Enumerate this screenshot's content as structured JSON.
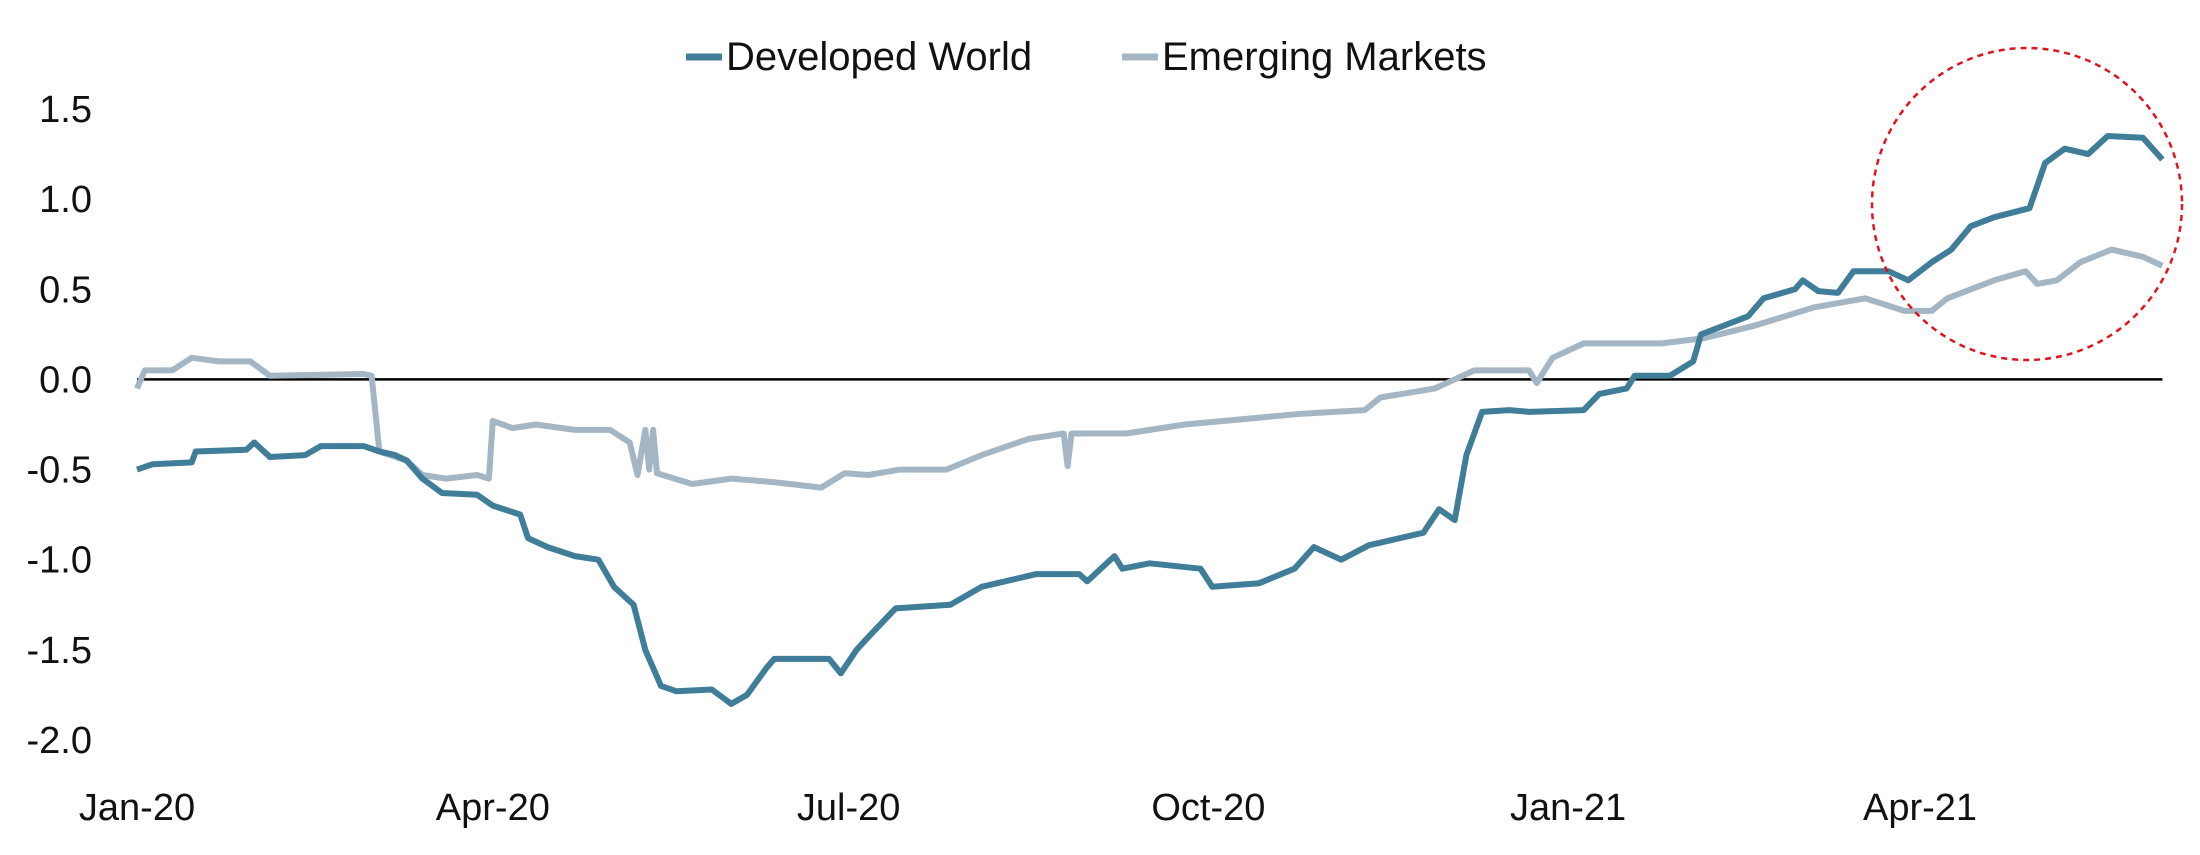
{
  "chart_data": {
    "type": "line",
    "title": "",
    "xlabel": "",
    "ylabel": "",
    "ylim": [
      -2.0,
      1.5
    ],
    "yticks": [
      "1.5",
      "1.0",
      "0.5",
      "0.0",
      "-0.5",
      "-1.0",
      "-1.5",
      "-2.0"
    ],
    "ytick_values": [
      1.5,
      1.0,
      0.5,
      0.0,
      -0.5,
      -1.0,
      -1.5,
      -2.0
    ],
    "xticks": [
      {
        "label": "Jan-20",
        "date": "2020-01-01"
      },
      {
        "label": "Apr-20",
        "date": "2020-04-01"
      },
      {
        "label": "Jul-20",
        "date": "2020-07-01"
      },
      {
        "label": "Oct-20",
        "date": "2020-10-01"
      },
      {
        "label": "Jan-21",
        "date": "2021-01-01"
      },
      {
        "label": "Apr-21",
        "date": "2021-04-01"
      }
    ],
    "grid": false,
    "zero_line": true,
    "legend_position": "top-center",
    "annotation": {
      "type": "dashed-circle",
      "color": "#e0141e",
      "around": "Apr-21 to end"
    },
    "series": [
      {
        "name": "Developed World",
        "color": "#3f7d99",
        "points": [
          [
            "2020-01-01",
            -0.5
          ],
          [
            "2020-01-05",
            -0.47
          ],
          [
            "2020-01-15",
            -0.46
          ],
          [
            "2020-01-16",
            -0.4
          ],
          [
            "2020-01-29",
            -0.39
          ],
          [
            "2020-01-31",
            -0.35
          ],
          [
            "2020-02-04",
            -0.43
          ],
          [
            "2020-02-13",
            -0.42
          ],
          [
            "2020-02-17",
            -0.37
          ],
          [
            "2020-02-28",
            -0.37
          ],
          [
            "2020-03-03",
            -0.4
          ],
          [
            "2020-03-07",
            -0.42
          ],
          [
            "2020-03-10",
            -0.45
          ],
          [
            "2020-03-14",
            -0.55
          ],
          [
            "2020-03-19",
            -0.63
          ],
          [
            "2020-03-28",
            -0.64
          ],
          [
            "2020-04-01",
            -0.7
          ],
          [
            "2020-04-08",
            -0.75
          ],
          [
            "2020-04-10",
            -0.88
          ],
          [
            "2020-04-15",
            -0.93
          ],
          [
            "2020-04-22",
            -0.98
          ],
          [
            "2020-04-28",
            -1.0
          ],
          [
            "2020-05-02",
            -1.15
          ],
          [
            "2020-05-07",
            -1.25
          ],
          [
            "2020-05-10",
            -1.5
          ],
          [
            "2020-05-14",
            -1.7
          ],
          [
            "2020-05-18",
            -1.73
          ],
          [
            "2020-05-27",
            -1.72
          ],
          [
            "2020-06-01",
            -1.8
          ],
          [
            "2020-06-05",
            -1.75
          ],
          [
            "2020-06-10",
            -1.6
          ],
          [
            "2020-06-12",
            -1.55
          ],
          [
            "2020-06-26",
            -1.55
          ],
          [
            "2020-06-29",
            -1.63
          ],
          [
            "2020-07-03",
            -1.5
          ],
          [
            "2020-07-06",
            -1.43
          ],
          [
            "2020-07-13",
            -1.27
          ],
          [
            "2020-07-27",
            -1.25
          ],
          [
            "2020-08-04",
            -1.15
          ],
          [
            "2020-08-18",
            -1.08
          ],
          [
            "2020-08-29",
            -1.08
          ],
          [
            "2020-08-31",
            -1.12
          ],
          [
            "2020-09-07",
            -0.98
          ],
          [
            "2020-09-09",
            -1.05
          ],
          [
            "2020-09-16",
            -1.02
          ],
          [
            "2020-09-29",
            -1.05
          ],
          [
            "2020-10-02",
            -1.15
          ],
          [
            "2020-10-14",
            -1.13
          ],
          [
            "2020-10-23",
            -1.05
          ],
          [
            "2020-10-28",
            -0.93
          ],
          [
            "2020-11-04",
            -1.0
          ],
          [
            "2020-11-11",
            -0.92
          ],
          [
            "2020-11-25",
            -0.85
          ],
          [
            "2020-11-29",
            -0.72
          ],
          [
            "2020-12-03",
            -0.78
          ],
          [
            "2020-12-06",
            -0.42
          ],
          [
            "2020-12-10",
            -0.18
          ],
          [
            "2020-12-17",
            -0.17
          ],
          [
            "2020-12-22",
            -0.18
          ],
          [
            "2021-01-05",
            -0.17
          ],
          [
            "2021-01-09",
            -0.08
          ],
          [
            "2021-01-16",
            -0.05
          ],
          [
            "2021-01-18",
            0.02
          ],
          [
            "2021-01-27",
            0.02
          ],
          [
            "2021-02-02",
            0.1
          ],
          [
            "2021-02-04",
            0.25
          ],
          [
            "2021-02-16",
            0.35
          ],
          [
            "2021-02-20",
            0.45
          ],
          [
            "2021-02-28",
            0.5
          ],
          [
            "2021-03-02",
            0.55
          ],
          [
            "2021-03-06",
            0.49
          ],
          [
            "2021-03-11",
            0.48
          ],
          [
            "2021-03-15",
            0.6
          ],
          [
            "2021-03-24",
            0.6
          ],
          [
            "2021-03-29",
            0.55
          ],
          [
            "2021-04-04",
            0.65
          ],
          [
            "2021-04-09",
            0.72
          ],
          [
            "2021-04-14",
            0.85
          ],
          [
            "2021-04-20",
            0.9
          ],
          [
            "2021-04-29",
            0.95
          ],
          [
            "2021-05-03",
            1.2
          ],
          [
            "2021-05-08",
            1.28
          ],
          [
            "2021-05-14",
            1.25
          ],
          [
            "2021-05-19",
            1.35
          ],
          [
            "2021-05-28",
            1.34
          ],
          [
            "2021-06-02",
            1.22
          ]
        ]
      },
      {
        "name": "Emerging Markets",
        "color": "#a4b6c4",
        "points": [
          [
            "2020-01-01",
            -0.05
          ],
          [
            "2020-01-03",
            0.05
          ],
          [
            "2020-01-10",
            0.05
          ],
          [
            "2020-01-15",
            0.12
          ],
          [
            "2020-01-22",
            0.1
          ],
          [
            "2020-01-30",
            0.1
          ],
          [
            "2020-02-04",
            0.02
          ],
          [
            "2020-02-28",
            0.03
          ],
          [
            "2020-03-01",
            0.02
          ],
          [
            "2020-03-03",
            -0.4
          ],
          [
            "2020-03-10",
            -0.45
          ],
          [
            "2020-03-14",
            -0.53
          ],
          [
            "2020-03-20",
            -0.55
          ],
          [
            "2020-03-28",
            -0.53
          ],
          [
            "2020-03-31",
            -0.55
          ],
          [
            "2020-04-01",
            -0.23
          ],
          [
            "2020-04-06",
            -0.27
          ],
          [
            "2020-04-12",
            -0.25
          ],
          [
            "2020-04-22",
            -0.28
          ],
          [
            "2020-05-01",
            -0.28
          ],
          [
            "2020-05-06",
            -0.35
          ],
          [
            "2020-05-08",
            -0.53
          ],
          [
            "2020-05-10",
            -0.28
          ],
          [
            "2020-05-11",
            -0.5
          ],
          [
            "2020-05-12",
            -0.28
          ],
          [
            "2020-05-13",
            -0.52
          ],
          [
            "2020-05-22",
            -0.58
          ],
          [
            "2020-06-01",
            -0.55
          ],
          [
            "2020-06-12",
            -0.57
          ],
          [
            "2020-06-24",
            -0.6
          ],
          [
            "2020-06-30",
            -0.52
          ],
          [
            "2020-07-06",
            -0.53
          ],
          [
            "2020-07-14",
            -0.5
          ],
          [
            "2020-07-26",
            -0.5
          ],
          [
            "2020-08-04",
            -0.42
          ],
          [
            "2020-08-16",
            -0.33
          ],
          [
            "2020-08-25",
            -0.3
          ],
          [
            "2020-08-26",
            -0.48
          ],
          [
            "2020-08-27",
            -0.3
          ],
          [
            "2020-09-10",
            -0.3
          ],
          [
            "2020-09-25",
            -0.25
          ],
          [
            "2020-10-10",
            -0.22
          ],
          [
            "2020-10-25",
            -0.19
          ],
          [
            "2020-11-10",
            -0.17
          ],
          [
            "2020-11-14",
            -0.1
          ],
          [
            "2020-11-28",
            -0.05
          ],
          [
            "2020-12-08",
            0.05
          ],
          [
            "2020-12-22",
            0.05
          ],
          [
            "2020-12-24",
            -0.02
          ],
          [
            "2020-12-28",
            0.12
          ],
          [
            "2021-01-05",
            0.2
          ],
          [
            "2021-01-25",
            0.2
          ],
          [
            "2021-02-05",
            0.23
          ],
          [
            "2021-02-18",
            0.3
          ],
          [
            "2021-03-05",
            0.4
          ],
          [
            "2021-03-18",
            0.45
          ],
          [
            "2021-03-28",
            0.38
          ],
          [
            "2021-04-04",
            0.38
          ],
          [
            "2021-04-08",
            0.45
          ],
          [
            "2021-04-20",
            0.55
          ],
          [
            "2021-04-28",
            0.6
          ],
          [
            "2021-05-01",
            0.53
          ],
          [
            "2021-05-06",
            0.55
          ],
          [
            "2021-05-12",
            0.65
          ],
          [
            "2021-05-20",
            0.72
          ],
          [
            "2021-05-28",
            0.68
          ],
          [
            "2021-06-02",
            0.63
          ]
        ]
      }
    ]
  }
}
